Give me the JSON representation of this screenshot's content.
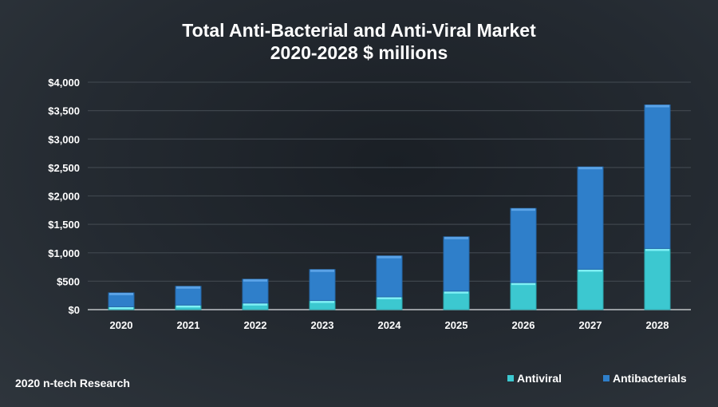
{
  "chart_data": {
    "type": "bar",
    "stacked": true,
    "title": "Total Anti-Bacterial and Anti-Viral Market",
    "subtitle": "2020-2028 $ millions",
    "xlabel": "",
    "ylabel": "",
    "categories": [
      "2020",
      "2021",
      "2022",
      "2023",
      "2024",
      "2025",
      "2026",
      "2027",
      "2028"
    ],
    "series": [
      {
        "name": "Antiviral",
        "color": "#3cc8d0",
        "values": [
          50,
          80,
          115,
          160,
          225,
          325,
          475,
          710,
          1075
        ]
      },
      {
        "name": "Antibacterials",
        "color": "#2f7fca",
        "values": [
          245,
          330,
          420,
          545,
          720,
          955,
          1305,
          1800,
          2525
        ]
      }
    ],
    "ylim": [
      0,
      4000
    ],
    "yticks": [
      0,
      500,
      1000,
      1500,
      2000,
      2500,
      3000,
      3500,
      4000
    ],
    "ytick_labels": [
      "$0",
      "$500",
      "$1,000",
      "$1,500",
      "$2,000",
      "$2,500",
      "$3,000",
      "$3,500",
      "$4,000"
    ],
    "grid": true,
    "legend_position": "bottom-right"
  },
  "footer": {
    "source": "2020 n-tech Research"
  }
}
